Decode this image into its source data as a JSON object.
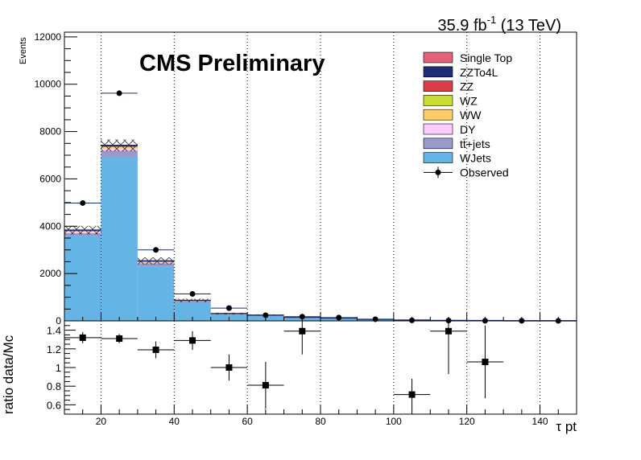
{
  "header": {
    "lumi_main": "35.9 fb",
    "lumi_exp": "-1",
    "lumi_energy": " (13 TeV)",
    "experiment": "CMS Preliminary"
  },
  "chart_data": [
    {
      "type": "stacked-histogram",
      "ylabel": "Events",
      "ylim": [
        0,
        12200
      ],
      "yticks": [
        0,
        2000,
        4000,
        6000,
        8000,
        10000,
        12000
      ],
      "xlim": [
        10,
        150
      ],
      "bin_edges": [
        10,
        20,
        30,
        40,
        50,
        60,
        70,
        80,
        90,
        100,
        110,
        120,
        130,
        140,
        150
      ],
      "series": [
        {
          "name": "WJets",
          "color": "#64b4e6",
          "values": [
            3600,
            6900,
            2300,
            780,
            270,
            220,
            140,
            110,
            60,
            30,
            15,
            10,
            6,
            4
          ]
        },
        {
          "name": "tt̄+jets",
          "color": "#9999cc",
          "values": [
            110,
            290,
            130,
            45,
            20,
            12,
            8,
            5,
            3,
            2,
            1,
            1,
            0,
            0
          ]
        },
        {
          "name": "DY",
          "color": "#ffccff",
          "values": [
            50,
            90,
            40,
            15,
            8,
            5,
            3,
            2,
            1,
            1,
            0,
            0,
            0,
            0
          ]
        },
        {
          "name": "WW",
          "color": "#ffcc66",
          "values": [
            30,
            55,
            25,
            10,
            4,
            3,
            2,
            1,
            1,
            0,
            0,
            0,
            0,
            0
          ]
        },
        {
          "name": "WZ",
          "color": "#c8dc32",
          "values": [
            10,
            20,
            10,
            4,
            2,
            1,
            1,
            0,
            0,
            0,
            0,
            0,
            0,
            0
          ]
        },
        {
          "name": "ZZ",
          "color": "#dc3c46",
          "values": [
            8,
            15,
            7,
            3,
            1,
            1,
            0,
            0,
            0,
            0,
            0,
            0,
            0,
            0
          ]
        },
        {
          "name": "ZZTo4L",
          "color": "#1e2d78",
          "values": [
            25,
            40,
            20,
            8,
            3,
            2,
            1,
            1,
            0,
            0,
            0,
            0,
            0,
            0
          ]
        },
        {
          "name": "Single Top",
          "color": "#e6607a",
          "values": [
            3,
            5,
            2,
            1,
            0,
            0,
            0,
            0,
            0,
            0,
            0,
            0,
            0,
            0
          ]
        }
      ],
      "uncertainty": [
        180,
        250,
        150,
        70,
        40,
        30,
        20,
        15,
        10,
        6,
        4,
        3,
        2,
        2
      ],
      "observed": {
        "name": "Observed",
        "x": [
          15,
          25,
          35,
          45,
          55,
          65,
          75,
          85,
          95,
          105,
          115,
          125,
          135,
          145
        ],
        "y": [
          4980,
          9620,
          3000,
          1140,
          540,
          240,
          180,
          140,
          70,
          22,
          12,
          5,
          3,
          2
        ]
      },
      "legend": "top-right"
    },
    {
      "type": "scatter",
      "ylabel": "ratio data/Mc",
      "xlabel": "τ pt",
      "ylim": [
        0.5,
        1.5
      ],
      "xlim": [
        10,
        150
      ],
      "yticks": [
        0.6,
        0.8,
        1,
        1.2,
        1.4
      ],
      "ytick_labels": [
        "0.6",
        "0.8",
        "1",
        "1.2",
        "1.4"
      ],
      "xticks": [
        20,
        40,
        60,
        80,
        100,
        120,
        140
      ],
      "x": [
        15,
        25,
        35,
        45,
        55,
        65,
        75,
        105,
        115,
        125
      ],
      "y": [
        1.32,
        1.31,
        1.19,
        1.29,
        1.0,
        0.81,
        1.39,
        0.71,
        1.39,
        1.06
      ],
      "yerr": [
        0.06,
        0.05,
        0.09,
        0.1,
        0.14,
        0.25,
        0.25,
        0.17,
        0.46,
        0.39
      ]
    }
  ]
}
